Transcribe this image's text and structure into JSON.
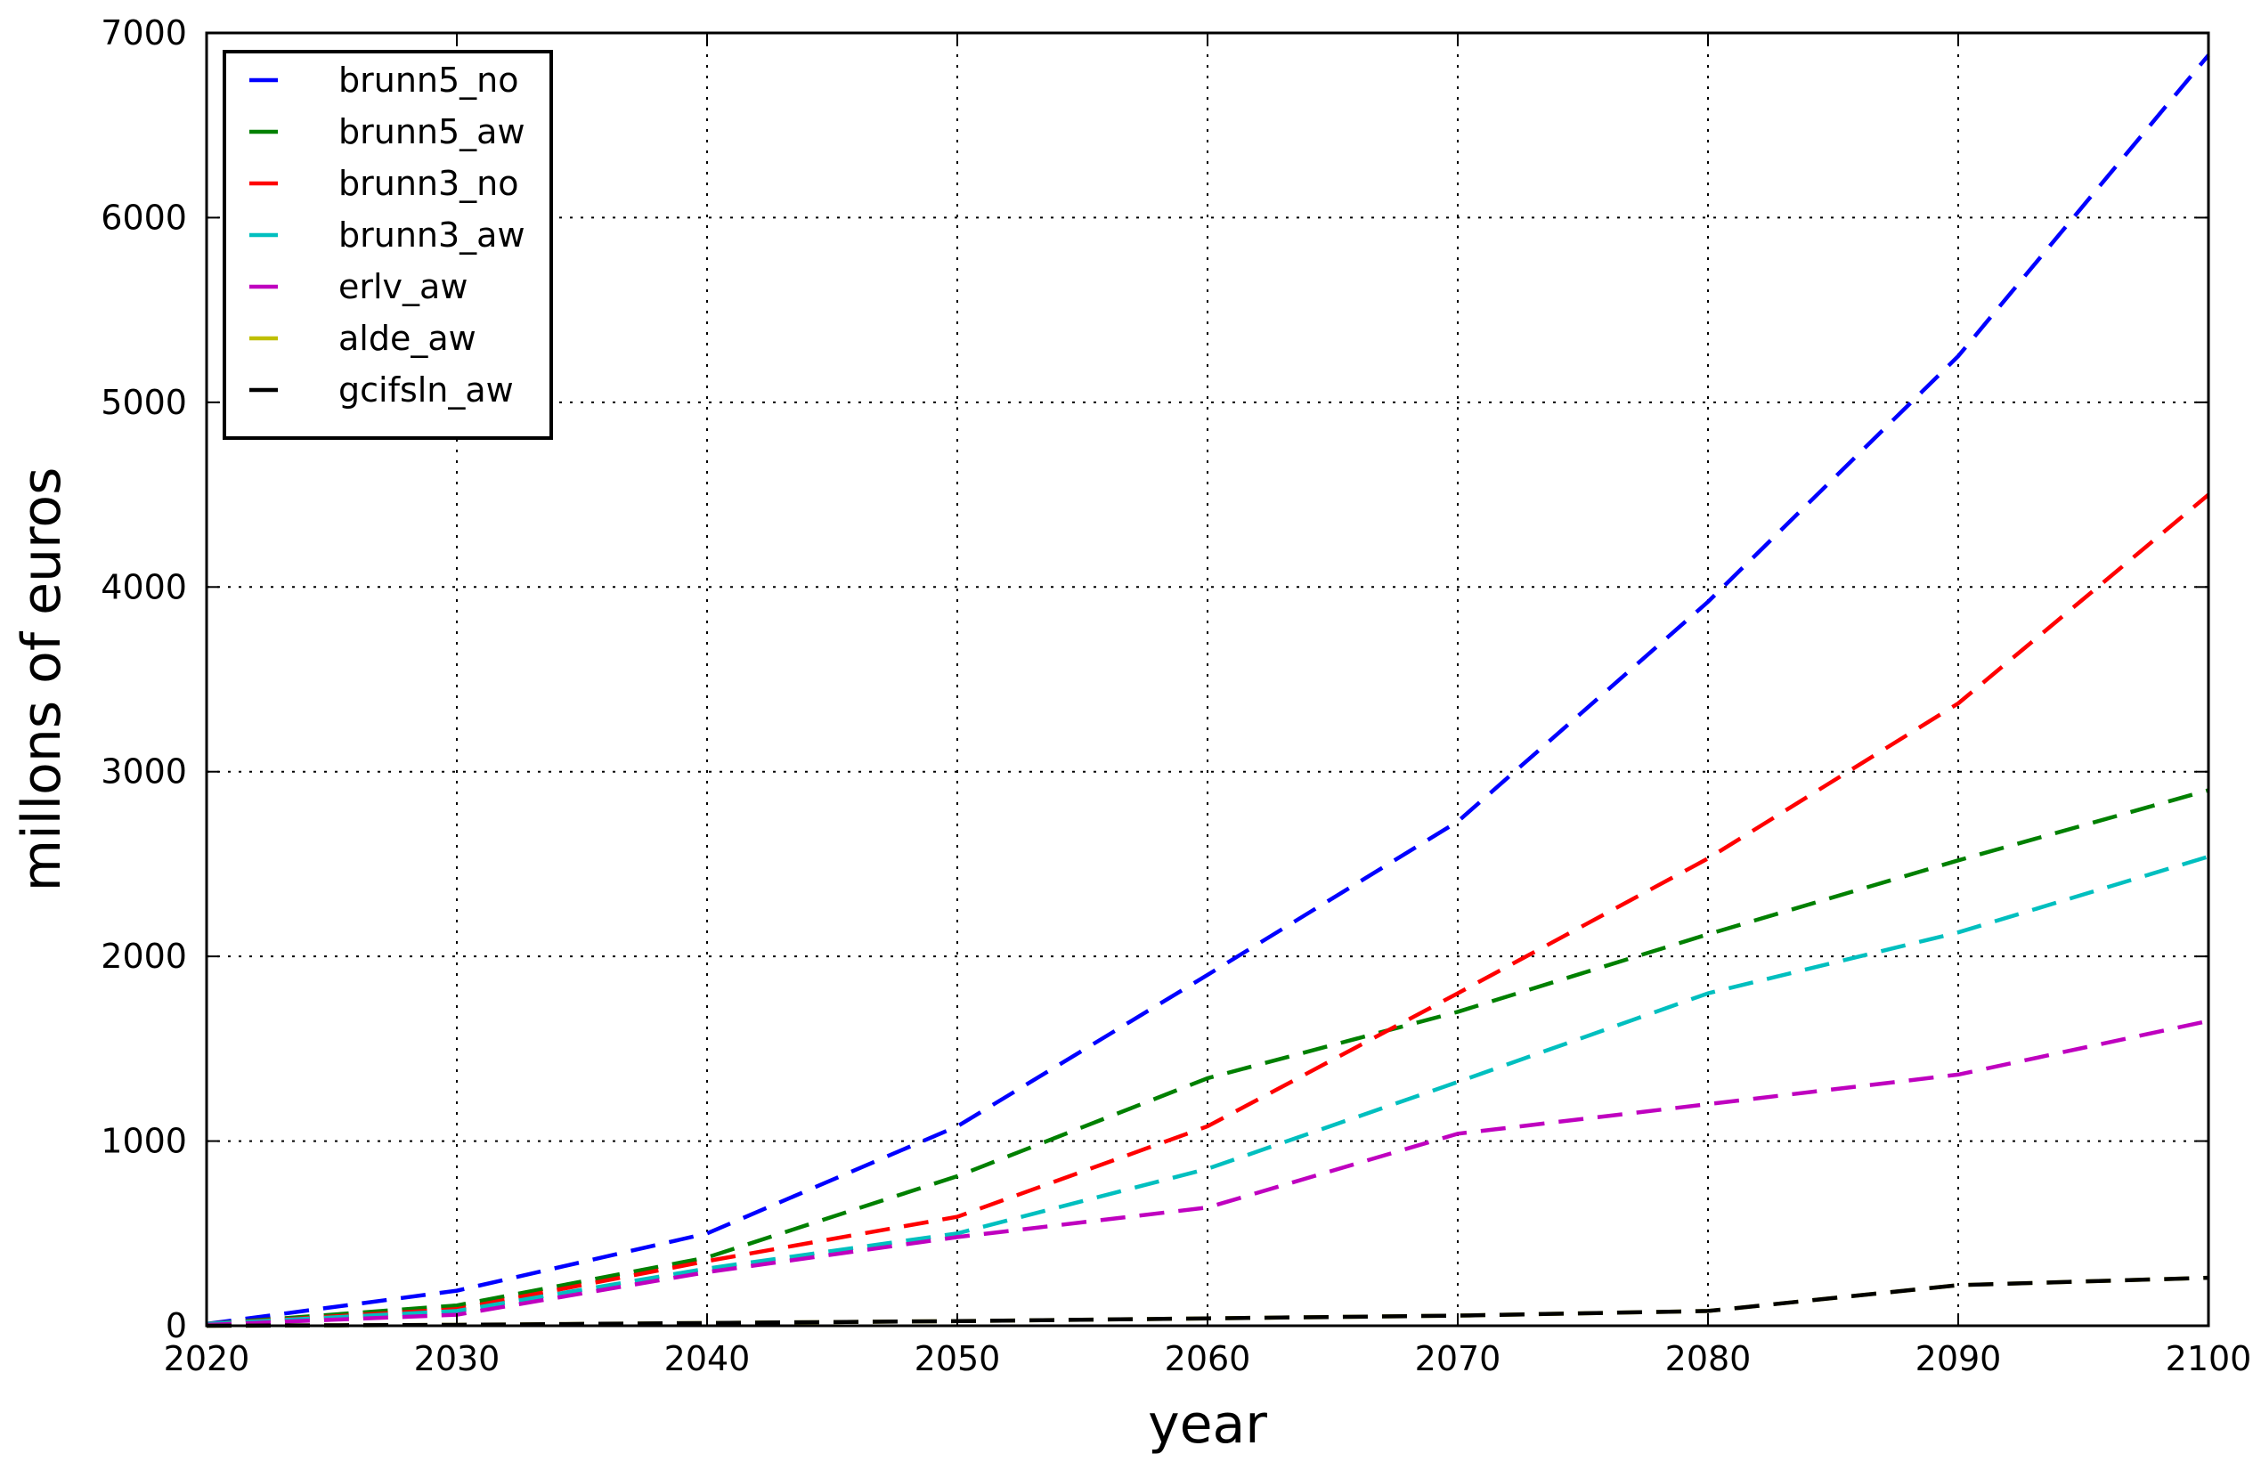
{
  "chart_data": {
    "type": "line",
    "title": "",
    "xlabel": "year",
    "ylabel": "millons of euros",
    "xlim": [
      2020,
      2100
    ],
    "ylim": [
      0,
      7000
    ],
    "x_ticks": [
      2020,
      2030,
      2040,
      2050,
      2060,
      2070,
      2080,
      2090,
      2100
    ],
    "y_ticks": [
      0,
      1000,
      2000,
      3000,
      4000,
      5000,
      6000,
      7000
    ],
    "grid": true,
    "legend_position": "top-left",
    "x": [
      2020,
      2030,
      2040,
      2050,
      2060,
      2070,
      2080,
      2090,
      2100
    ],
    "series": [
      {
        "name": "brunn5_no",
        "color": "#0000ff",
        "values": [
          10,
          190,
          500,
          1080,
          1900,
          2730,
          3920,
          5250,
          6880
        ]
      },
      {
        "name": "brunn5_aw",
        "color": "#008000",
        "values": [
          10,
          110,
          370,
          810,
          1340,
          1700,
          2120,
          2520,
          2900
        ]
      },
      {
        "name": "brunn3_no",
        "color": "#ff0000",
        "values": [
          10,
          90,
          350,
          590,
          1080,
          1800,
          2530,
          3370,
          4500
        ]
      },
      {
        "name": "brunn3_aw",
        "color": "#00bfbf",
        "values": [
          10,
          80,
          310,
          500,
          850,
          1320,
          1800,
          2130,
          2540
        ]
      },
      {
        "name": "erlv_aw",
        "color": "#bf00bf",
        "values": [
          5,
          60,
          290,
          480,
          640,
          1040,
          1200,
          1360,
          1650
        ]
      },
      {
        "name": "alde_aw",
        "color": "#bfbf00",
        "values": [
          0,
          5,
          15,
          25,
          40,
          55,
          80,
          220,
          260
        ]
      },
      {
        "name": "gcifsln_aw",
        "color": "#000000",
        "values": [
          0,
          5,
          15,
          25,
          40,
          55,
          80,
          220,
          260
        ]
      }
    ]
  }
}
